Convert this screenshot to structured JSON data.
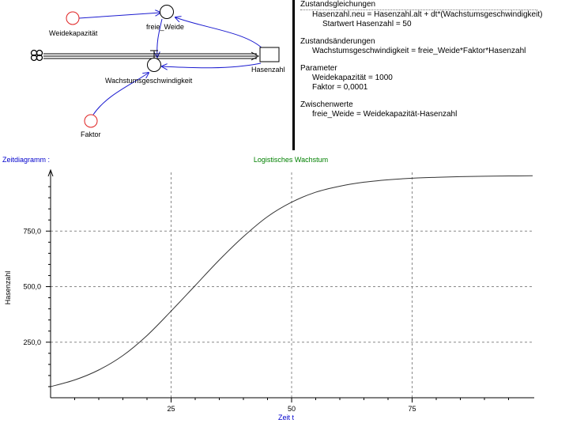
{
  "diagram": {
    "labels": {
      "weidekapazitaet": "Weidekapazität",
      "freie_weide": "freie_Weide",
      "wachstum": "Wachstumsgeschwindigkeit",
      "hasenzahl": "Hasenzahl",
      "faktor": "Faktor"
    }
  },
  "equations": {
    "zustandsgleichungen": {
      "title": "Zustandsgleichungen",
      "line1": "Hasenzahl.neu = Hasenzahl.alt + dt*(Wachstumsgeschwindigkeit)",
      "line2": "Startwert Hasenzahl = 50"
    },
    "zustandsaenderungen": {
      "title": "Zustandsänderungen",
      "line1": "Wachstumsgeschwindigkeit = freie_Weide*Faktor*Hasenzahl"
    },
    "parameter": {
      "title": "Parameter",
      "line1": "Weidekapazität = 1000",
      "line2": "Faktor = 0,0001"
    },
    "zwischenwerte": {
      "title": "Zwischenwerte",
      "line1": "freie_Weide = Weidekapazität-Hasenzahl"
    }
  },
  "chart_header": {
    "left": "Zeitdiagramm :",
    "title": "Logistisches Wachstum"
  },
  "colors": {
    "header_blue": "#0000cc",
    "title_green": "#008000",
    "red_circle": "#e02020",
    "arrow_blue": "#1c1cd0"
  },
  "chart_data": {
    "type": "line",
    "title": "Logistisches Wachstum",
    "xlabel": "Zeit t",
    "ylabel": "Hasenzahl",
    "xlim": [
      0,
      100
    ],
    "ylim": [
      0,
      1000
    ],
    "x_ticks": [
      25,
      50,
      75
    ],
    "x_tick_labels": [
      "25",
      "50",
      "75"
    ],
    "y_ticks": [
      250,
      500,
      750
    ],
    "y_tick_labels": [
      "250,0",
      "500,0",
      "750,0"
    ],
    "grid": true,
    "series": [
      {
        "x": [
          0,
          5,
          10,
          15,
          20,
          25,
          30,
          35,
          40,
          45,
          50,
          55,
          60,
          65,
          70,
          75,
          80,
          85,
          90,
          95,
          100
        ],
        "values": [
          50,
          80,
          125,
          190,
          280,
          390,
          505,
          620,
          725,
          815,
          880,
          925,
          952,
          970,
          981,
          988,
          992,
          995,
          997,
          998,
          999
        ]
      }
    ]
  }
}
